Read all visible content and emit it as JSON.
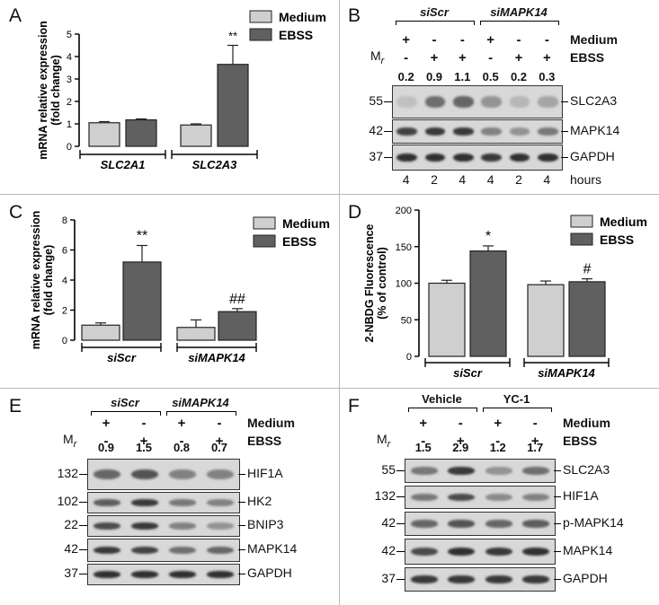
{
  "panels": {
    "A": {
      "label": "A",
      "chart_data": {
        "type": "bar",
        "ylabel": "mRNA relative expression\n(fold change)",
        "ylim": [
          0,
          5
        ],
        "yticks": [
          "0",
          "1",
          "2",
          "3",
          "4",
          "5"
        ],
        "groups": [
          "SLC2A1",
          "SLC2A3"
        ],
        "series": [
          {
            "name": "Medium",
            "color": "#cfcfcf",
            "values": [
              1.05,
              0.95
            ],
            "errors": [
              0.05,
              0.05
            ]
          },
          {
            "name": "EBSS",
            "color": "#606060",
            "values": [
              1.18,
              3.65
            ],
            "errors": [
              0.04,
              0.85
            ]
          }
        ],
        "annotations": [
          "",
          "**"
        ]
      }
    },
    "B": {
      "label": "B",
      "groups": [
        "siScr",
        "siMAPK14"
      ],
      "mr": "M",
      "mr_sub": "r",
      "row_labels": [
        "Medium",
        "EBSS"
      ],
      "medium_signs": [
        "+",
        "-",
        "-",
        "+",
        "-",
        "-"
      ],
      "ebss_signs": [
        "-",
        "+",
        "+",
        "-",
        "+",
        "+"
      ],
      "quant": [
        "0.2",
        "0.9",
        "1.1",
        "0.5",
        "0.2",
        "0.3"
      ],
      "markers": [
        "55",
        "42",
        "37"
      ],
      "proteins": [
        "SLC2A3",
        "MAPK14",
        "GAPDH"
      ],
      "hours": [
        "4",
        "2",
        "4",
        "4",
        "2",
        "4"
      ],
      "hours_label": "hours"
    },
    "C": {
      "label": "C",
      "chart_data": {
        "type": "bar",
        "ylabel": "mRNA relative expression\n(fold change)",
        "ylim": [
          0,
          8
        ],
        "yticks": [
          "0",
          "2",
          "4",
          "6",
          "8"
        ],
        "groups": [
          "siScr",
          "siMAPK14"
        ],
        "series": [
          {
            "name": "Medium",
            "color": "#cfcfcf",
            "values": [
              1.0,
              0.85
            ],
            "errors": [
              0.15,
              0.5
            ]
          },
          {
            "name": "EBSS",
            "color": "#606060",
            "values": [
              5.2,
              1.9
            ],
            "errors": [
              1.1,
              0.2
            ]
          }
        ],
        "annotations": [
          "**",
          "##"
        ]
      }
    },
    "D": {
      "label": "D",
      "chart_data": {
        "type": "bar",
        "ylabel": "2-NBDG Fluorescence\n(% of control)",
        "ylim": [
          0,
          200
        ],
        "yticks": [
          "0",
          "50",
          "100",
          "150",
          "200"
        ],
        "groups": [
          "siScr",
          "siMAPK14"
        ],
        "series": [
          {
            "name": "Medium",
            "color": "#cfcfcf",
            "values": [
              100,
              98
            ],
            "errors": [
              4,
              5
            ]
          },
          {
            "name": "EBSS",
            "color": "#606060",
            "values": [
              144,
              102
            ],
            "errors": [
              7,
              4
            ]
          }
        ],
        "annotations": [
          "*",
          "#"
        ]
      }
    },
    "E": {
      "label": "E",
      "groups": [
        "siScr",
        "siMAPK14"
      ],
      "mr": "M",
      "mr_sub": "r",
      "row_labels": [
        "Medium",
        "EBSS"
      ],
      "medium_signs": [
        "+",
        "-",
        "+",
        "-"
      ],
      "ebss_signs": [
        "-",
        "+",
        "-",
        "+"
      ],
      "quant": [
        "0.9",
        "1.5",
        "0.8",
        "0.7"
      ],
      "markers": [
        "132",
        "102",
        "22",
        "42",
        "37"
      ],
      "proteins": [
        "HIF1A",
        "HK2",
        "BNIP3",
        "MAPK14",
        "GAPDH"
      ]
    },
    "F": {
      "label": "F",
      "groups": [
        "Vehicle",
        "YC-1"
      ],
      "mr": "M",
      "mr_sub": "r",
      "row_labels": [
        "Medium",
        "EBSS"
      ],
      "medium_signs": [
        "+",
        "-",
        "+",
        "-"
      ],
      "ebss_signs": [
        "-",
        "+",
        "-",
        "+"
      ],
      "quant": [
        "1.5",
        "2.9",
        "1.2",
        "1.7"
      ],
      "markers": [
        "55",
        "132",
        "42",
        "42",
        "37"
      ],
      "proteins": [
        "SLC2A3",
        "HIF1A",
        "p-MAPK14",
        "MAPK14",
        "GAPDH"
      ]
    }
  }
}
